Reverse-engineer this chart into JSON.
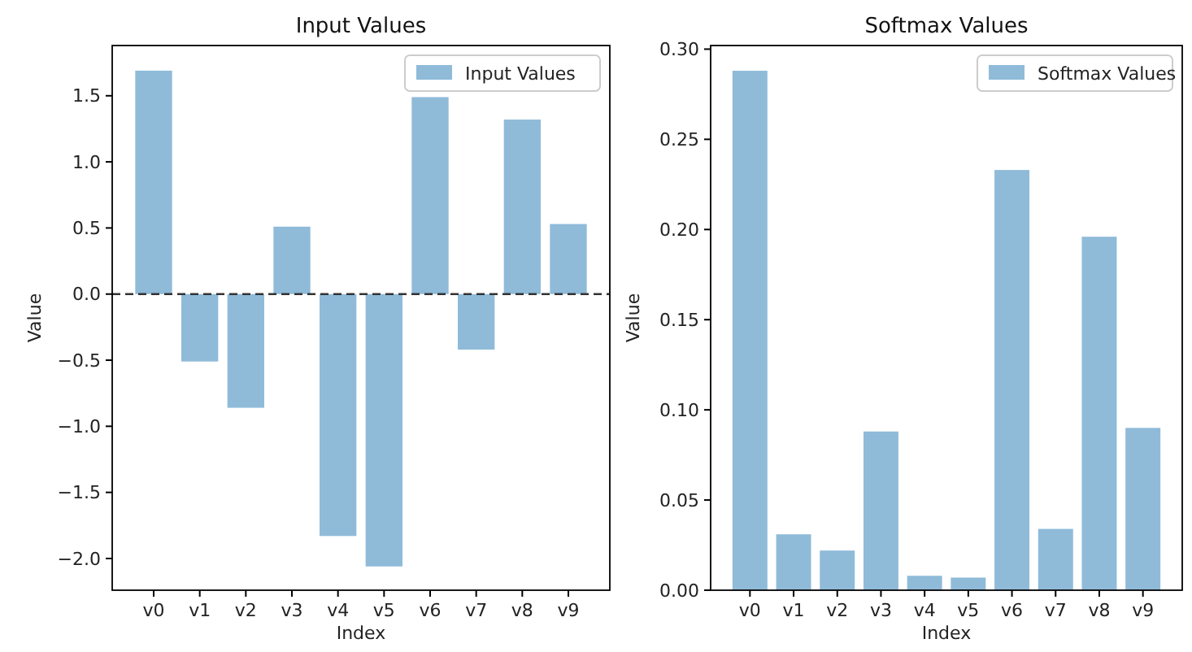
{
  "chart_data": [
    {
      "type": "bar",
      "title": "Input Values",
      "xlabel": "Index",
      "ylabel": "Value",
      "categories": [
        "v0",
        "v1",
        "v2",
        "v3",
        "v4",
        "v5",
        "v6",
        "v7",
        "v8",
        "v9"
      ],
      "series": [
        {
          "name": "Input Values",
          "color": "#8fbbd9",
          "values": [
            1.69,
            -0.51,
            -0.86,
            0.51,
            -1.83,
            -2.06,
            1.49,
            -0.42,
            1.32,
            0.53
          ]
        }
      ],
      "ylim": [
        -2.24,
        1.88
      ],
      "yticks": [
        {
          "value": -2.0,
          "label": "−2.0"
        },
        {
          "value": -1.5,
          "label": "−1.5"
        },
        {
          "value": -1.0,
          "label": "−1.0"
        },
        {
          "value": -0.5,
          "label": "−0.5"
        },
        {
          "value": 0,
          "label": "0.0"
        },
        {
          "value": 0.5,
          "label": "0.5"
        },
        {
          "value": 1.0,
          "label": "1.0"
        },
        {
          "value": 1.5,
          "label": "1.5"
        }
      ],
      "ref_lines": [
        {
          "axis": "y",
          "value": 0,
          "color": "#333333",
          "line_style": "dashed"
        }
      ],
      "legend": "top right",
      "grid": false
    },
    {
      "type": "bar",
      "title": "Softmax Values",
      "xlabel": "Index",
      "ylabel": "Value",
      "categories": [
        "v0",
        "v1",
        "v2",
        "v3",
        "v4",
        "v5",
        "v6",
        "v7",
        "v8",
        "v9"
      ],
      "series": [
        {
          "name": "Softmax Values",
          "color": "#8fbbd9",
          "values": [
            0.288,
            0.031,
            0.022,
            0.088,
            0.008,
            0.007,
            0.233,
            0.034,
            0.196,
            0.09
          ]
        }
      ],
      "ylim": [
        0,
        0.302
      ],
      "yticks": [
        {
          "value": 0,
          "label": "0.00"
        },
        {
          "value": 0.05,
          "label": "0.05"
        },
        {
          "value": 0.1,
          "label": "0.10"
        },
        {
          "value": 0.15,
          "label": "0.15"
        },
        {
          "value": 0.2,
          "label": "0.20"
        },
        {
          "value": 0.25,
          "label": "0.25"
        },
        {
          "value": 0.3,
          "label": "0.30"
        }
      ],
      "legend": "top right",
      "grid": false
    }
  ]
}
